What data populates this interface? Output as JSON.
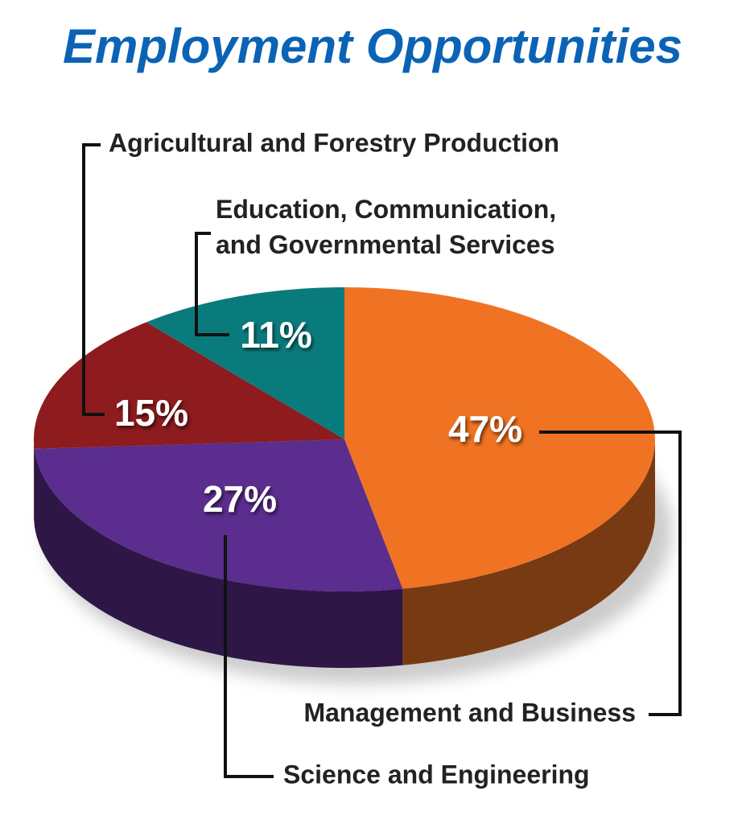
{
  "chart_data": {
    "type": "pie3d",
    "title": "Employment Opportunities",
    "categories": [
      "Management and Business",
      "Science and Engineering",
      "Agricultural and Forestry Production",
      "Education, Communication, and Governmental Services"
    ],
    "values": [
      47,
      27,
      15,
      11
    ],
    "value_labels": [
      "47%",
      "27%",
      "15%",
      "11%"
    ],
    "colors": [
      "#f07323",
      "#5b2d8e",
      "#8e1b1e",
      "#0a7b7d"
    ]
  }
}
